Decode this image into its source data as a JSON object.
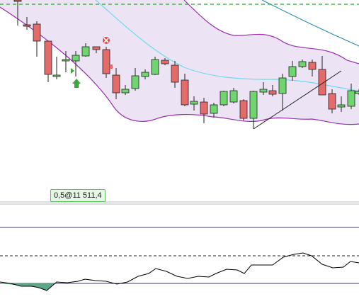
{
  "price_label": "0,5@11 511,4",
  "colors": {
    "background": "#ffffff",
    "band_fill": "#ece3f5",
    "band_line": "#9a2fb0",
    "ma_line": "#6fdcec",
    "ma2_line": "#2b8fb5",
    "candle_up": "#6fd66f",
    "candle_down": "#e56a6a",
    "candle_border": "#222222",
    "dashed_level": "#22aa22",
    "oscillator_line": "#000000",
    "oscillator_fill": "#5fa58a",
    "separator": "#b5b9c8",
    "guide_line": "#3b3b78"
  },
  "icons": [
    "buy-arrow-icon",
    "sell-cross-icon",
    "small-triangle-marker-icon"
  ]
}
